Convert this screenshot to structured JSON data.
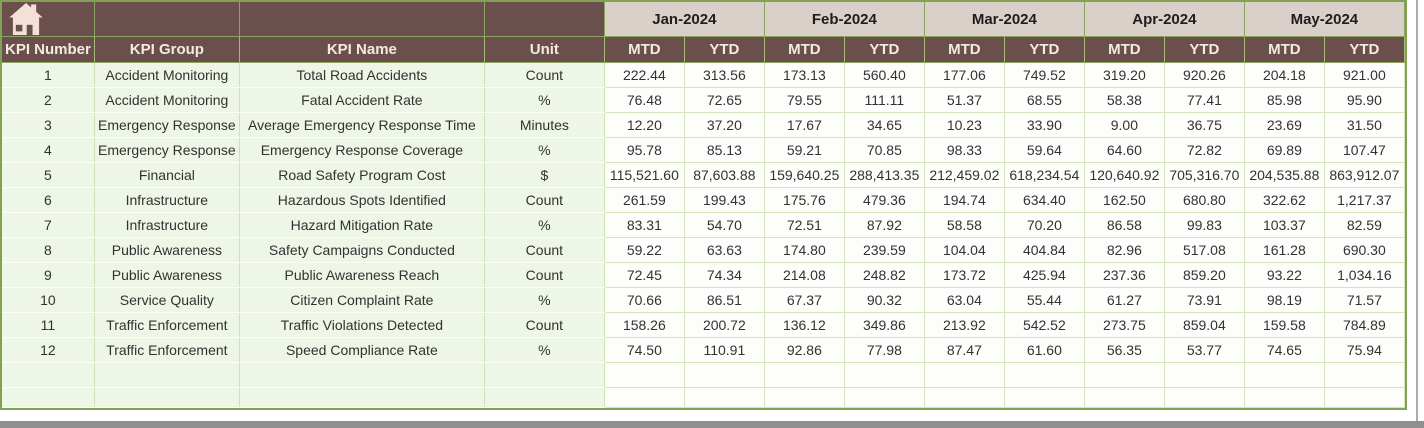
{
  "header": {
    "columns": [
      "KPI Number",
      "KPI Group",
      "KPI Name",
      "Unit"
    ],
    "months": [
      "Jan-2024",
      "Feb-2024",
      "Mar-2024",
      "Apr-2024",
      "May-2024"
    ],
    "mtd_label": "MTD",
    "ytd_label": "YTD",
    "home_icon": "home-icon"
  },
  "colors": {
    "header_brown": "#6b4f4c",
    "header_text": "#f6e9e0",
    "month_band": "#d9d0ca",
    "cell_green": "#edf6e7",
    "cell_white": "#fdfefb",
    "grid_green": "#cfe2b5",
    "outer_border": "#84a054",
    "scrollbar_gray": "#8f8f8f"
  },
  "rows": [
    {
      "kpi_number": "1",
      "group": "Accident Monitoring",
      "name": "Total Road Accidents",
      "unit": "Count",
      "values": [
        "222.44",
        "313.56",
        "173.13",
        "560.40",
        "177.06",
        "749.52",
        "319.20",
        "920.26",
        "204.18",
        "921.00"
      ]
    },
    {
      "kpi_number": "2",
      "group": "Accident Monitoring",
      "name": "Fatal Accident Rate",
      "unit": "%",
      "values": [
        "76.48",
        "72.65",
        "79.55",
        "111.11",
        "51.37",
        "68.55",
        "58.38",
        "77.41",
        "85.98",
        "95.90"
      ]
    },
    {
      "kpi_number": "3",
      "group": "Emergency Response",
      "name": "Average Emergency Response Time",
      "unit": "Minutes",
      "values": [
        "12.20",
        "37.20",
        "17.67",
        "34.65",
        "10.23",
        "33.90",
        "9.00",
        "36.75",
        "23.69",
        "31.50"
      ]
    },
    {
      "kpi_number": "4",
      "group": "Emergency Response",
      "name": "Emergency Response Coverage",
      "unit": "%",
      "values": [
        "95.78",
        "85.13",
        "59.21",
        "70.85",
        "98.33",
        "59.64",
        "64.60",
        "72.82",
        "69.89",
        "107.47"
      ]
    },
    {
      "kpi_number": "5",
      "group": "Financial",
      "name": "Road Safety Program Cost",
      "unit": "$",
      "values": [
        "115,521.60",
        "87,603.88",
        "159,640.25",
        "288,413.35",
        "212,459.02",
        "618,234.54",
        "120,640.92",
        "705,316.70",
        "204,535.88",
        "863,912.07"
      ]
    },
    {
      "kpi_number": "6",
      "group": "Infrastructure",
      "name": "Hazardous Spots Identified",
      "unit": "Count",
      "values": [
        "261.59",
        "199.43",
        "175.76",
        "479.36",
        "194.74",
        "634.40",
        "162.50",
        "680.80",
        "322.62",
        "1,217.37"
      ]
    },
    {
      "kpi_number": "7",
      "group": "Infrastructure",
      "name": "Hazard Mitigation Rate",
      "unit": "%",
      "values": [
        "83.31",
        "54.70",
        "72.51",
        "87.92",
        "58.58",
        "70.20",
        "86.58",
        "99.83",
        "103.37",
        "82.59"
      ]
    },
    {
      "kpi_number": "8",
      "group": "Public Awareness",
      "name": "Safety Campaigns Conducted",
      "unit": "Count",
      "values": [
        "59.22",
        "63.63",
        "174.80",
        "239.59",
        "104.04",
        "404.84",
        "82.96",
        "517.08",
        "161.28",
        "690.30"
      ]
    },
    {
      "kpi_number": "9",
      "group": "Public Awareness",
      "name": "Public Awareness Reach",
      "unit": "Count",
      "values": [
        "72.45",
        "74.34",
        "214.08",
        "248.82",
        "173.72",
        "425.94",
        "237.36",
        "859.20",
        "93.22",
        "1,034.16"
      ]
    },
    {
      "kpi_number": "10",
      "group": "Service Quality",
      "name": "Citizen Complaint Rate",
      "unit": "%",
      "values": [
        "70.66",
        "86.51",
        "67.37",
        "90.32",
        "63.04",
        "55.44",
        "61.27",
        "73.91",
        "98.19",
        "71.57"
      ]
    },
    {
      "kpi_number": "11",
      "group": "Traffic Enforcement",
      "name": "Traffic Violations Detected",
      "unit": "Count",
      "values": [
        "158.26",
        "200.72",
        "136.12",
        "349.86",
        "213.92",
        "542.52",
        "273.75",
        "859.04",
        "159.58",
        "784.89"
      ]
    },
    {
      "kpi_number": "12",
      "group": "Traffic Enforcement",
      "name": "Speed Compliance Rate",
      "unit": "%",
      "values": [
        "74.50",
        "110.91",
        "92.86",
        "77.98",
        "87.47",
        "61.60",
        "56.35",
        "53.77",
        "74.65",
        "75.94"
      ]
    }
  ],
  "empty_rows": 2
}
